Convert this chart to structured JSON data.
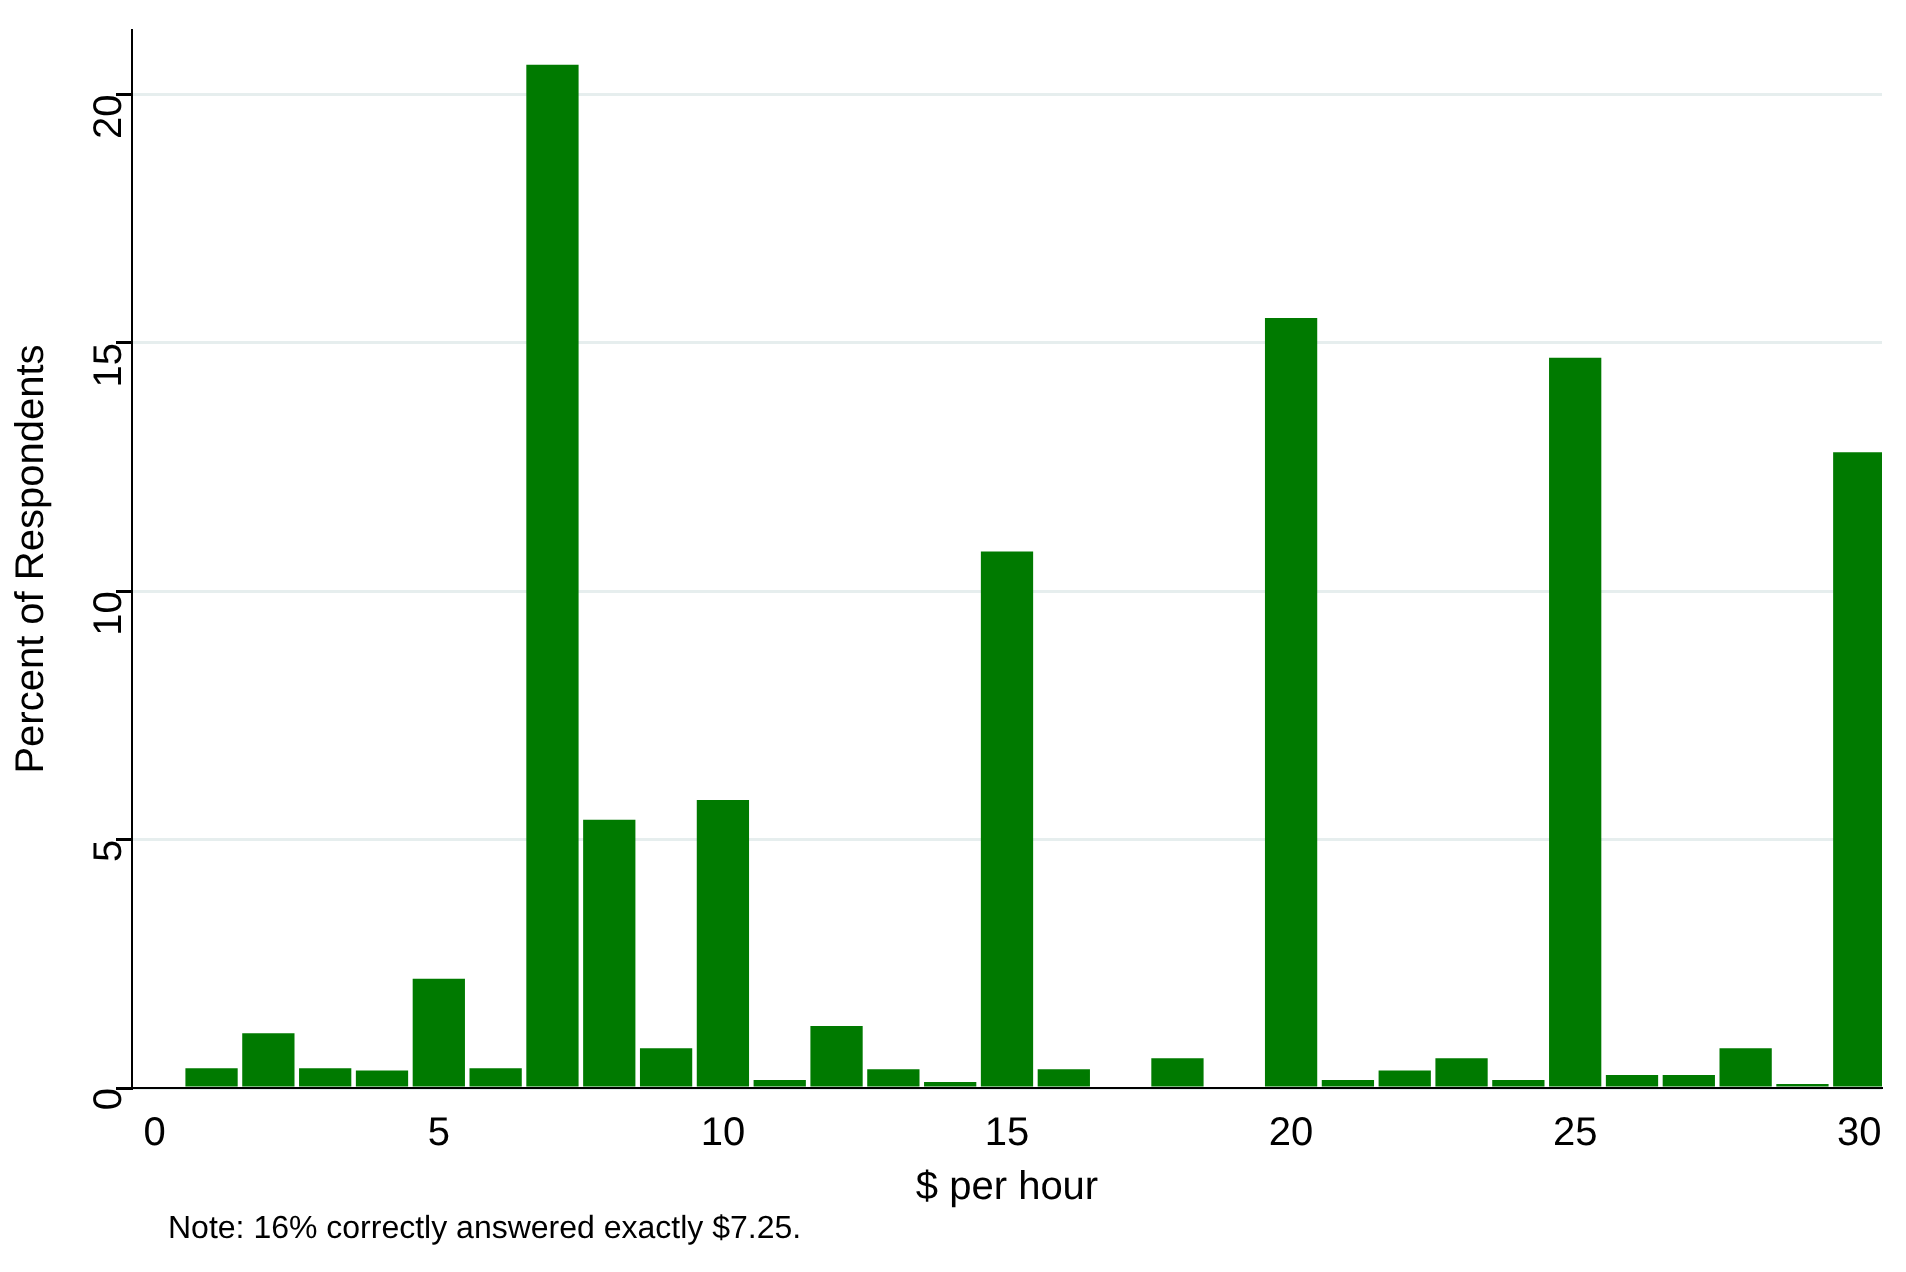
{
  "chart_data": {
    "type": "histogram",
    "xlabel": "$ per hour",
    "ylabel": "Percent of Respondents",
    "bins": [
      0.5,
      1.5,
      2.5,
      3.5,
      4.5,
      5.5,
      6.5,
      7.5,
      8.5,
      9.5,
      10.5,
      11.5,
      12.5,
      13.5,
      14.5,
      15.5,
      16.5,
      17.5,
      18.5,
      19.5,
      20.5,
      21.5,
      22.5,
      23.5,
      24.5,
      25.5,
      26.5,
      27.5,
      28.5,
      29.5,
      30.5
    ],
    "values": [
      0.4,
      1.1,
      0.4,
      0.35,
      2.2,
      0.4,
      20.6,
      5.4,
      0.8,
      5.8,
      0.16,
      1.25,
      0.38,
      0.12,
      10.8,
      0.38,
      0,
      0.6,
      0,
      15.5,
      0.16,
      0.35,
      0.6,
      0.16,
      14.7,
      0.26,
      0.26,
      0.8,
      0.08,
      12.8
    ],
    "color": "#007a00",
    "xlim": [
      -0.4,
      30.4
    ],
    "xticks": [
      0,
      5,
      10,
      15,
      20,
      25,
      30
    ],
    "ylim": [
      0,
      21.3
    ],
    "yticks": [
      0,
      5,
      10,
      15,
      20
    ],
    "grid": "y",
    "annotations": [
      "Note: 16% correctly answered exactly $7.25."
    ]
  }
}
